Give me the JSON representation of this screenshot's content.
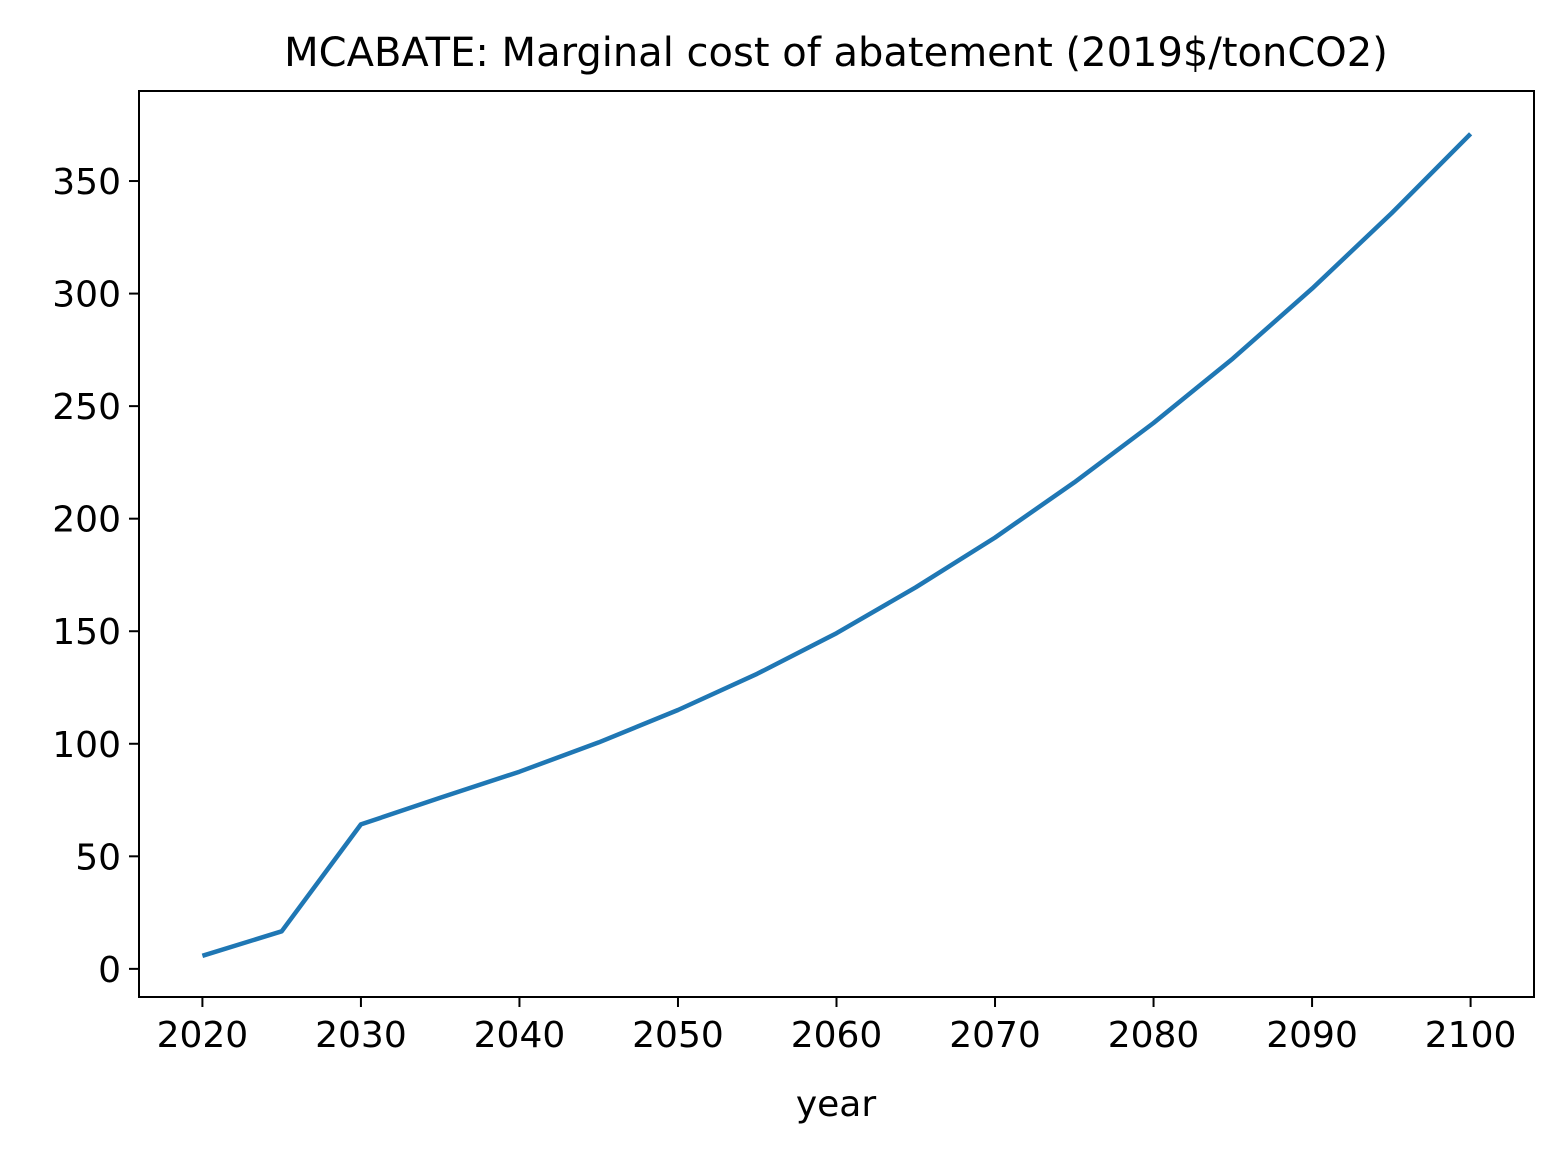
{
  "chart_data": {
    "type": "line",
    "title": "MCABATE: Marginal cost of abatement (2019$/tonCO2)",
    "xlabel": "year",
    "ylabel": "",
    "xlim": [
      2016,
      2104
    ],
    "ylim": [
      -12.5,
      390
    ],
    "xticks": [
      2020,
      2030,
      2040,
      2050,
      2060,
      2070,
      2080,
      2090,
      2100
    ],
    "yticks": [
      0,
      50,
      100,
      150,
      200,
      250,
      300,
      350
    ],
    "grid": false,
    "legend": "none",
    "colors": {
      "line": "#1f77b4",
      "axes": "#000000",
      "background": "#ffffff"
    },
    "series": [
      {
        "x": [
          2020,
          2025,
          2030,
          2035,
          2040,
          2045,
          2050,
          2055,
          2060,
          2065,
          2070,
          2075,
          2080,
          2085,
          2090,
          2095,
          2100
        ],
        "values": [
          5.8,
          16.7,
          64.2,
          76.0,
          87.6,
          100.6,
          115.0,
          131.1,
          149.1,
          169.5,
          191.6,
          216.1,
          242.5,
          271.1,
          302.2,
          335.6,
          371.0
        ]
      }
    ]
  }
}
